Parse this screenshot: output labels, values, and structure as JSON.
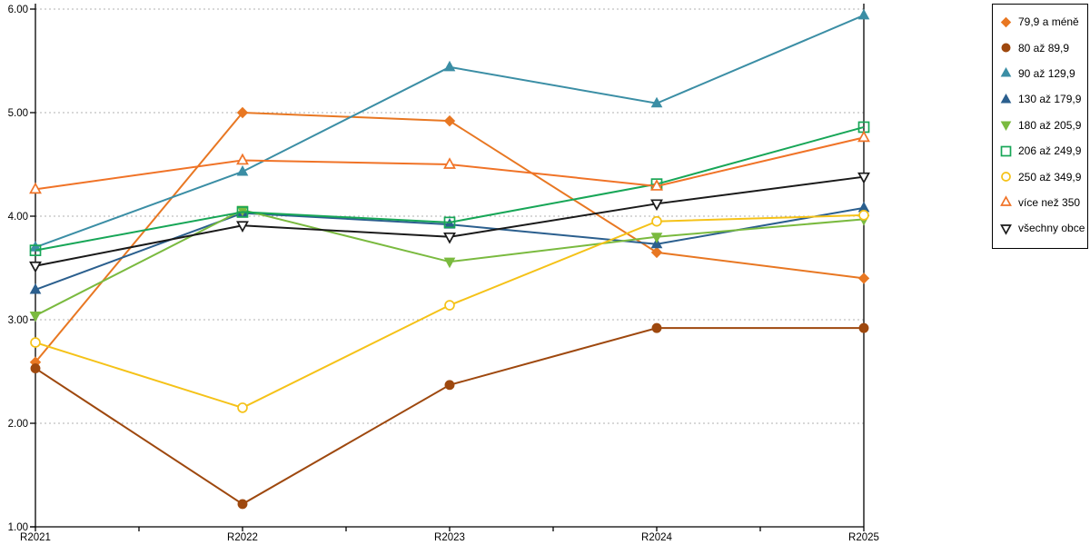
{
  "chart_data": {
    "type": "line",
    "title": "",
    "xlabel": "",
    "ylabel": "",
    "categories": [
      "R2021",
      "R2022",
      "R2023",
      "R2024",
      "R2025"
    ],
    "series": [
      {
        "name": "79,9 a méně",
        "color": "#E87722",
        "marker": "diamond",
        "fill": "filled",
        "values": [
          2.59,
          5.0,
          4.92,
          3.65,
          3.4
        ]
      },
      {
        "name": "80 až 89,9",
        "color": "#9E480E",
        "marker": "circle",
        "fill": "filled",
        "values": [
          2.53,
          1.22,
          2.37,
          2.92,
          2.92
        ]
      },
      {
        "name": "90 až 129,9",
        "color": "#3B8EA5",
        "marker": "triangle-up",
        "fill": "filled",
        "values": [
          3.7,
          4.43,
          5.44,
          5.09,
          5.94
        ]
      },
      {
        "name": "130 až 179,9",
        "color": "#2B5F8E",
        "marker": "triangle-up",
        "fill": "filled",
        "values": [
          3.29,
          4.03,
          3.92,
          3.73,
          4.08
        ]
      },
      {
        "name": "180 až 205,9",
        "color": "#7ABA3F",
        "marker": "triangle-down",
        "fill": "filled",
        "values": [
          3.04,
          4.06,
          3.56,
          3.8,
          3.97
        ]
      },
      {
        "name": "206 až 249,9",
        "color": "#17A657",
        "marker": "square",
        "fill": "open",
        "values": [
          3.67,
          4.04,
          3.94,
          4.31,
          4.86
        ]
      },
      {
        "name": "250 až 349,9",
        "color": "#F5C218",
        "marker": "circle",
        "fill": "open",
        "values": [
          2.78,
          2.15,
          3.14,
          3.95,
          4.01
        ]
      },
      {
        "name": "více než 350",
        "color": "#F07327",
        "marker": "triangle-up",
        "fill": "open",
        "values": [
          4.26,
          4.54,
          4.5,
          4.29,
          4.76
        ]
      },
      {
        "name": "všechny obce",
        "color": "#1A1A1A",
        "marker": "triangle-down",
        "fill": "open",
        "values": [
          3.52,
          3.91,
          3.8,
          4.12,
          4.38
        ]
      }
    ],
    "ylim": [
      1,
      6
    ],
    "ytick_labels": [
      "1.00",
      "2.00",
      "3.00",
      "4.00",
      "5.00",
      "6.00"
    ],
    "grid": "horizontal-dashed",
    "grid_color": "#b0b0b0",
    "axis_color": "#000000",
    "background": "#ffffff",
    "legend_position": "top-right",
    "legend_border_color": "#000000"
  }
}
